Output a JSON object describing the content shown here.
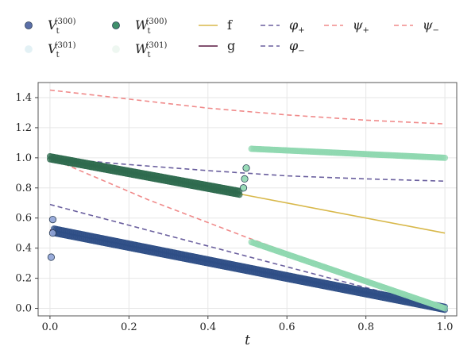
{
  "chart_data": {
    "type": "line",
    "xlabel": "t",
    "ylabel": "",
    "xlim": [
      -0.03,
      1.03
    ],
    "ylim": [
      -0.05,
      1.5
    ],
    "xticks": [
      "0.0",
      "0.2",
      "0.4",
      "0.6",
      "0.8",
      "1.0"
    ],
    "yticks": [
      "0.0",
      "0.2",
      "0.4",
      "0.6",
      "0.8",
      "1.0",
      "1.2",
      "1.4"
    ],
    "grid": true,
    "legend_position": "top",
    "legend": [
      {
        "symbol": "V",
        "sub": "t",
        "sup": "(300)",
        "marker": "circle",
        "color": "#5b6fa8"
      },
      {
        "symbol": "V",
        "sub": "t",
        "sup": "(301)",
        "marker": "circle",
        "color": "#e3f1f5"
      },
      {
        "symbol": "W",
        "sub": "t",
        "sup": "(300)",
        "marker": "circle",
        "color": "#3f8f6a"
      },
      {
        "symbol": "W",
        "sub": "t",
        "sup": "(301)",
        "marker": "circle",
        "color": "#eef7f1"
      },
      {
        "label": "f",
        "line": "solid",
        "color": "#d8b84a"
      },
      {
        "label": "g",
        "line": "solid",
        "color": "#5a1840"
      },
      {
        "label": "φ+",
        "symbol": "φ",
        "sub": "+",
        "line": "dashed",
        "color": "#6a5f9e"
      },
      {
        "label": "φ−",
        "symbol": "φ",
        "sub": "−",
        "line": "dashed",
        "color": "#6a5f9e"
      },
      {
        "label": "ψ+",
        "symbol": "ψ",
        "sub": "+",
        "line": "dashed",
        "color": "#f08a8a"
      },
      {
        "label": "ψ−",
        "symbol": "ψ",
        "sub": "−",
        "line": "dashed",
        "color": "#f08a8a"
      }
    ],
    "series": [
      {
        "name": "f",
        "style": "solid",
        "color": "#d8b84a",
        "x": [
          0.0,
          0.5,
          0.5,
          1.0
        ],
        "y": [
          1.0,
          0.75,
          0.75,
          0.5
        ]
      },
      {
        "name": "g",
        "style": "solid",
        "color": "#5a1840",
        "x": [
          0.0,
          1.0
        ],
        "y": [
          0.52,
          0.0
        ]
      },
      {
        "name": "φ+",
        "style": "dashed",
        "color": "#6a5f9e",
        "x": [
          0.0,
          0.2,
          0.4,
          0.6,
          0.8,
          1.0
        ],
        "y": [
          1.0,
          0.955,
          0.915,
          0.88,
          0.86,
          0.845
        ]
      },
      {
        "name": "φ−",
        "style": "dashed",
        "color": "#6a5f9e",
        "x": [
          0.0,
          1.0
        ],
        "y": [
          0.69,
          0.0
        ]
      },
      {
        "name": "ψ+",
        "style": "dashed",
        "color": "#f08a8a",
        "x": [
          0.0,
          0.2,
          0.4,
          0.6,
          0.8,
          1.0
        ],
        "y": [
          1.45,
          1.39,
          1.33,
          1.285,
          1.25,
          1.225
        ]
      },
      {
        "name": "ψ−",
        "style": "dashed",
        "color": "#f08a8a",
        "x": [
          0.0,
          0.25,
          0.5,
          0.75,
          1.0
        ],
        "y": [
          1.0,
          0.72,
          0.47,
          0.23,
          0.0
        ]
      }
    ],
    "dense_series": [
      {
        "name": "V upper edge",
        "color": "#2f4f86",
        "x0": 0.01,
        "x1": 1.0,
        "y0": 0.53,
        "y1": 0.01,
        "n": 300
      },
      {
        "name": "V lower edge",
        "color": "#2f4f86",
        "x0": 0.01,
        "x1": 1.0,
        "y0": 0.5,
        "y1": -0.01,
        "n": 300
      },
      {
        "name": "W upper a",
        "color": "#2f6b4f",
        "x0": 0.0,
        "x1": 0.48,
        "y0": 1.01,
        "y1": 0.78,
        "n": 150
      },
      {
        "name": "W lower a",
        "color": "#2f6b4f",
        "x0": 0.0,
        "x1": 0.48,
        "y0": 0.99,
        "y1": 0.755,
        "n": 150
      },
      {
        "name": "W band upper",
        "color": "#8fd8b0",
        "x0": 0.51,
        "x1": 1.0,
        "y0": 1.06,
        "y1": 1.0,
        "n": 160
      },
      {
        "name": "W band lower",
        "color": "#8fd8b0",
        "x0": 0.51,
        "x1": 1.0,
        "y0": 0.44,
        "y1": 0.0,
        "n": 160
      }
    ],
    "scatter_points": [
      {
        "series": "V",
        "x": 0.007,
        "y": 0.59,
        "color": "#8fa3d6"
      },
      {
        "series": "V",
        "x": 0.007,
        "y": 0.5,
        "color": "#8fa3d6"
      },
      {
        "series": "V",
        "x": 0.003,
        "y": 0.34,
        "color": "#8fa3d6"
      },
      {
        "series": "W",
        "x": 0.49,
        "y": 0.8,
        "color": "#8fd8b0"
      },
      {
        "series": "W",
        "x": 0.493,
        "y": 0.86,
        "color": "#8fd8b0"
      },
      {
        "series": "W",
        "x": 0.497,
        "y": 0.932,
        "color": "#8fd8b0"
      }
    ]
  }
}
